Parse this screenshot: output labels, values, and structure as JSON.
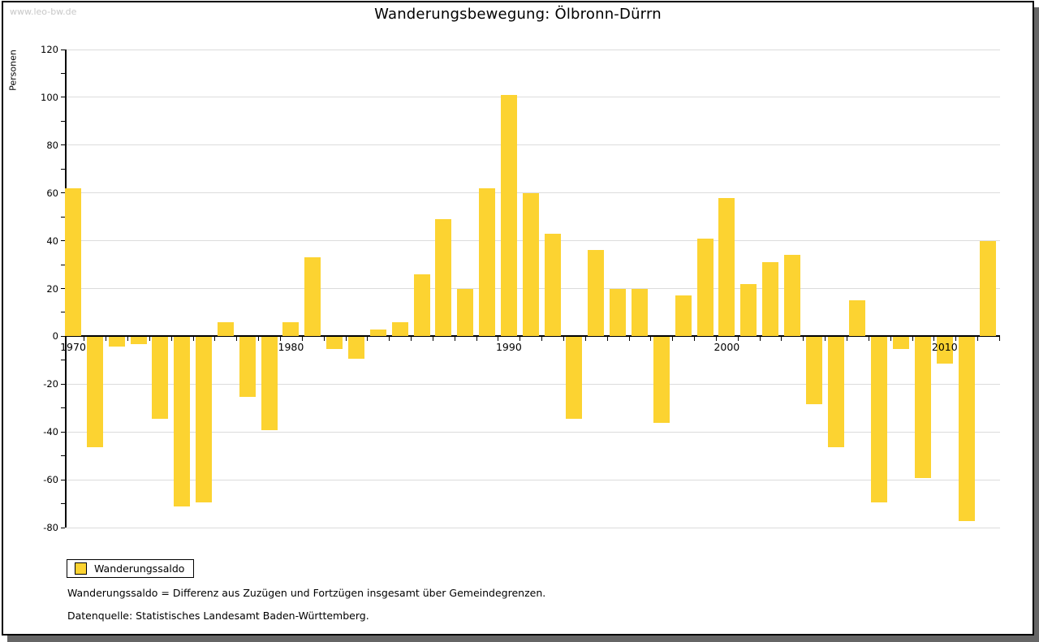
{
  "watermark": "www.leo-bw.de",
  "title": "Wanderungsbewegung: Ölbronn-Dürrn",
  "y_axis": {
    "label": "Personen",
    "min": -80,
    "max": 120,
    "label_step": 20,
    "tick_step": 10
  },
  "x_axis": {
    "tick_labels": [
      "1970",
      "1980",
      "1990",
      "2000",
      "2010"
    ]
  },
  "legend": {
    "label": "Wanderungssaldo"
  },
  "footnotes": [
    "Wanderungssaldo = Differenz aus Zuzügen und Fortzügen insgesamt über Gemeindegrenzen.",
    "Datenquelle: Statistisches Landesamt Baden-Württemberg."
  ],
  "colors": {
    "bar": "#fcd331",
    "gridline": "#dcdcdc",
    "axis": "#000000",
    "watermark": "#c8c8c8",
    "shadow": "#666666"
  },
  "chart_data": {
    "type": "bar",
    "title": "Wanderungsbewegung: Ölbronn-Dürrn",
    "xlabel": "",
    "ylabel": "Personen",
    "ylim": [
      -80,
      120
    ],
    "grid": true,
    "legend_position": "bottom-left",
    "series_name": "Wanderungssaldo",
    "categories": [
      1970,
      1971,
      1972,
      1973,
      1974,
      1975,
      1976,
      1977,
      1978,
      1979,
      1980,
      1981,
      1982,
      1983,
      1984,
      1985,
      1986,
      1987,
      1988,
      1989,
      1990,
      1991,
      1992,
      1993,
      1994,
      1995,
      1996,
      1997,
      1998,
      1999,
      2000,
      2001,
      2002,
      2003,
      2004,
      2005,
      2006,
      2007,
      2008,
      2009,
      2010,
      2011,
      2012
    ],
    "values": [
      62,
      -46,
      -4,
      -3,
      -34,
      -71,
      -69,
      6,
      -25,
      -39,
      6,
      33,
      -5,
      -9,
      3,
      6,
      26,
      49,
      20,
      62,
      101,
      60,
      43,
      -34,
      36,
      20,
      20,
      -36,
      17,
      41,
      58,
      22,
      31,
      34,
      -28,
      -46,
      15,
      -69,
      -5,
      -59,
      -11,
      -77,
      40
    ]
  }
}
